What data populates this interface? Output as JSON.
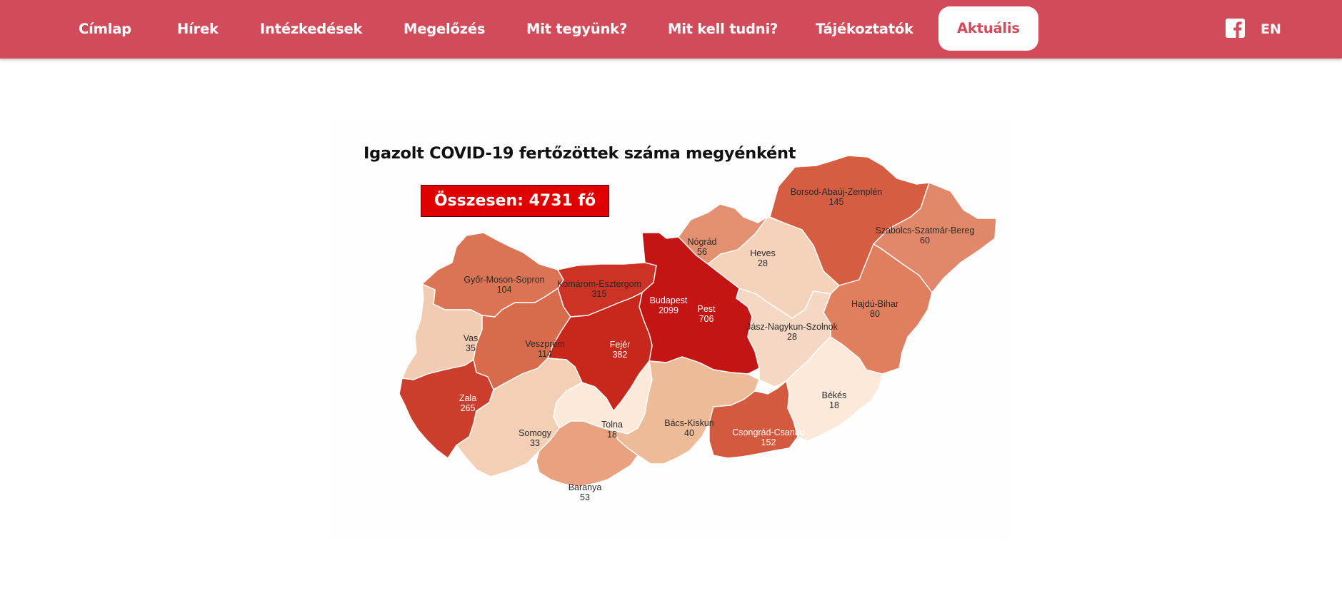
{
  "nav": {
    "items": [
      {
        "label": "Címlap"
      },
      {
        "label": "Hírek"
      },
      {
        "label": "Intézkedések"
      },
      {
        "label": "Megelőzés"
      },
      {
        "label": "Mit tegyünk?"
      },
      {
        "label": "Mit kell tudni?"
      },
      {
        "label": "Tájékoztatók"
      },
      {
        "label": "Aktuális",
        "active": true
      }
    ],
    "facebook_icon": "facebook-icon",
    "language": "EN"
  },
  "colors": {
    "nav_bg": "#d24b5b",
    "active_bg": "#ffffff",
    "active_text": "#d24b5b",
    "total_box": "#e00000"
  },
  "map": {
    "title": "Igazolt COVID-19 fertőzöttek száma megyénként",
    "total": "Összesen: 4731 fő",
    "counties": [
      {
        "name": "Borsod-Abaúj-Zemplén",
        "value": "145",
        "fill": "#d45d42"
      },
      {
        "name": "Szabolcs-Szatmár-Bereg",
        "value": "60",
        "fill": "#e2886a"
      },
      {
        "name": "Nógrád",
        "value": "56",
        "fill": "#e2906f"
      },
      {
        "name": "Heves",
        "value": "28",
        "fill": "#f5d2ba"
      },
      {
        "name": "Győr-Moson-Sopron",
        "value": "104",
        "fill": "#db7454"
      },
      {
        "name": "Komárom-Esztergom",
        "value": "315",
        "fill": "#cc3325"
      },
      {
        "name": "Budapest",
        "value": "2099",
        "fill": "#c41515"
      },
      {
        "name": "Pest",
        "value": "706",
        "fill": "#c41515"
      },
      {
        "name": "Hajdú-Bihar",
        "value": "80",
        "fill": "#df7f5e"
      },
      {
        "name": "Jász-Nagykun-Szolnok",
        "value": "28",
        "fill": "#f5d8c4"
      },
      {
        "name": "Vas",
        "value": "35",
        "fill": "#f2ccb2"
      },
      {
        "name": "Veszprém",
        "value": "114",
        "fill": "#d96b4d"
      },
      {
        "name": "Fejér",
        "value": "382",
        "fill": "#c8271b"
      },
      {
        "name": "Zala",
        "value": "265",
        "fill": "#cc3e2c"
      },
      {
        "name": "Somogy",
        "value": "33",
        "fill": "#f3cfb5"
      },
      {
        "name": "Tolna",
        "value": "18",
        "fill": "#fde9d9"
      },
      {
        "name": "Bács-Kiskun",
        "value": "40",
        "fill": "#eebb98"
      },
      {
        "name": "Csongrád-Csanád",
        "value": "152",
        "fill": "#d35a3f"
      },
      {
        "name": "Békés",
        "value": "18",
        "fill": "#fde9d9"
      },
      {
        "name": "Baranya",
        "value": "53",
        "fill": "#e9a27f"
      }
    ]
  }
}
